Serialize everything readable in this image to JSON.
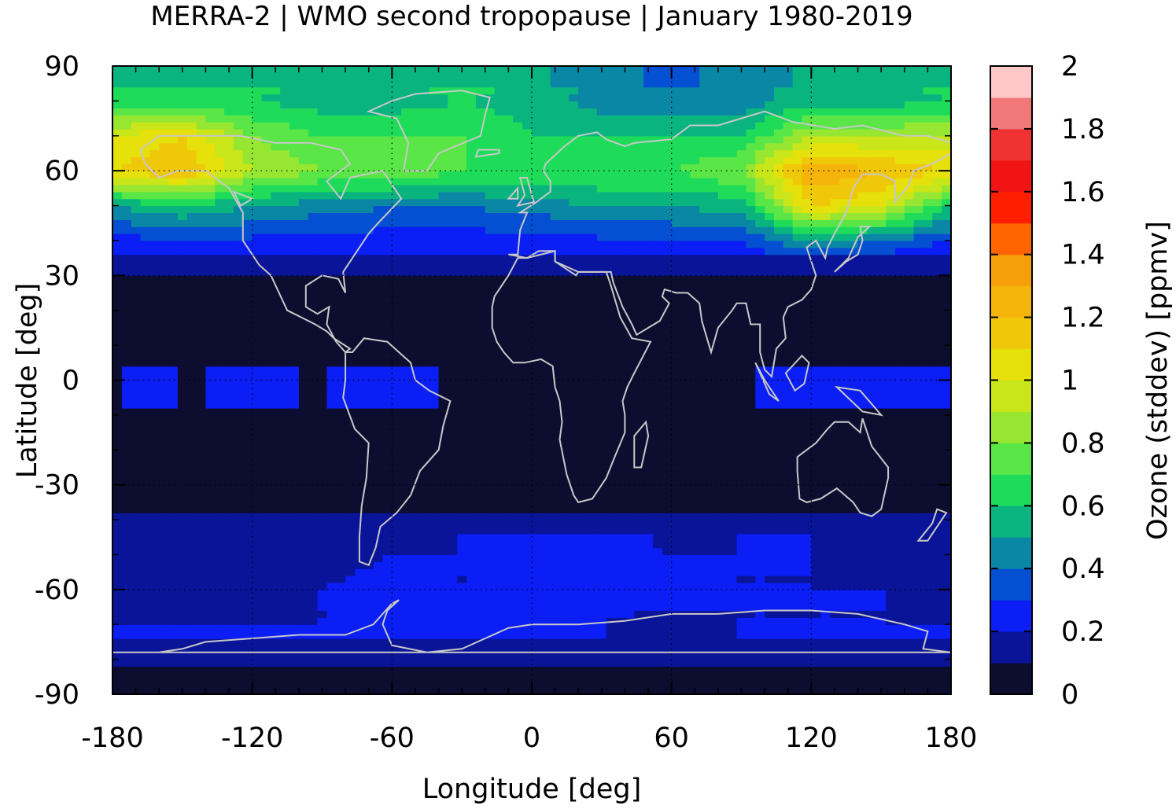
{
  "chart_data": {
    "type": "heatmap",
    "title": "MERRA-2 | WMO second tropopause | January 1980-2019",
    "xlabel": "Longitude [deg]",
    "ylabel": "Latitude [deg]",
    "xlim": [
      -180,
      180
    ],
    "ylim": [
      -90,
      90
    ],
    "x_ticks": [
      -180,
      -120,
      -60,
      0,
      60,
      120,
      180
    ],
    "y_ticks": [
      -90,
      -60,
      -30,
      0,
      30,
      60,
      90
    ],
    "grid": true,
    "colorbar": {
      "label": "Ozone (stddev) [ppmv]",
      "range": [
        0,
        2
      ],
      "ticks": [
        0,
        0.2,
        0.4,
        0.6,
        0.8,
        1,
        1.2,
        1.4,
        1.6,
        1.8,
        2
      ],
      "tick_labels": [
        "0",
        "0.2",
        "0.4",
        "0.6",
        "0.8",
        "1",
        "1.2",
        "1.4",
        "1.6",
        "1.8",
        "2"
      ],
      "levels": [
        0,
        0.1,
        0.2,
        0.3,
        0.4,
        0.5,
        0.6,
        0.7,
        0.8,
        0.9,
        1.0,
        1.1,
        1.2,
        1.3,
        1.4,
        1.5,
        1.6,
        1.7,
        1.8,
        1.9,
        2.0
      ],
      "colors": [
        "#0d0d30",
        "#0a1499",
        "#0a1ef5",
        "#0550d2",
        "#0a87a5",
        "#0ab47f",
        "#1edc5a",
        "#5ae646",
        "#96e632",
        "#c8e619",
        "#e6e10a",
        "#f0c80a",
        "#f5b40a",
        "#f5a00a",
        "#ff6400",
        "#ff1e00",
        "#f01414",
        "#f03232",
        "#f07878",
        "#ffc8c8"
      ]
    },
    "zonal_profile": {
      "description_units": "ppmv",
      "lat": [
        -90,
        -80,
        -72,
        -66,
        -60,
        -50,
        -42,
        -36,
        -30,
        -20,
        -10,
        0,
        10,
        20,
        30,
        36,
        42,
        48,
        54,
        60,
        70,
        80,
        90
      ],
      "value_by_longitude_sector": {
        "lon": [
          -180,
          -150,
          -120,
          -90,
          -60,
          -30,
          0,
          30,
          60,
          90,
          120,
          150,
          180
        ],
        "lat_60": [
          1.1,
          1.2,
          0.9,
          0.8,
          0.8,
          0.7,
          0.7,
          0.7,
          0.7,
          0.8,
          1.3,
          1.2,
          1.1
        ],
        "lat_70": [
          1.0,
          1.1,
          0.8,
          0.7,
          0.7,
          0.7,
          0.6,
          0.6,
          0.6,
          0.6,
          0.9,
          0.9,
          0.9
        ],
        "lat_80": [
          0.6,
          0.6,
          0.6,
          0.55,
          0.55,
          0.6,
          0.55,
          0.45,
          0.4,
          0.45,
          0.55,
          0.55,
          0.6
        ],
        "lat_50": [
          0.5,
          0.6,
          0.5,
          0.45,
          0.4,
          0.4,
          0.45,
          0.5,
          0.5,
          0.55,
          1.1,
          1.0,
          0.6
        ],
        "lat_40": [
          0.25,
          0.3,
          0.28,
          0.25,
          0.25,
          0.25,
          0.25,
          0.28,
          0.3,
          0.3,
          0.5,
          0.4,
          0.3
        ],
        "lat_-50": [
          0.15,
          0.15,
          0.15,
          0.15,
          0.2,
          0.2,
          0.25,
          0.25,
          0.2,
          0.2,
          0.2,
          0.15,
          0.15
        ],
        "lat_-60": [
          0.15,
          0.15,
          0.15,
          0.2,
          0.25,
          0.2,
          0.3,
          0.25,
          0.25,
          0.2,
          0.2,
          0.2,
          0.15
        ],
        "lat_-70": [
          0.2,
          0.2,
          0.2,
          0.2,
          0.2,
          0.25,
          0.2,
          0.2,
          0.15,
          0.2,
          0.2,
          0.2,
          0.2
        ]
      }
    }
  }
}
